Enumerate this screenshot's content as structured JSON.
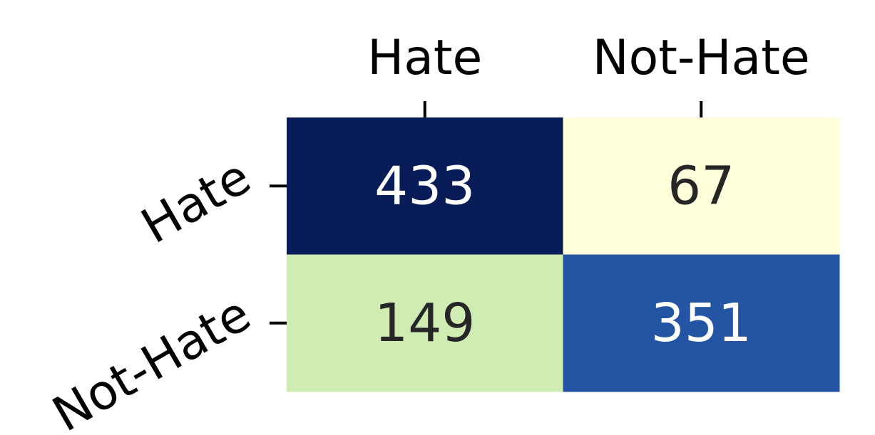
{
  "chart_data": {
    "type": "heatmap",
    "title": "",
    "xlabel": "",
    "ylabel": "",
    "x_categories": [
      "Hate",
      "Not-Hate"
    ],
    "y_categories": [
      "Hate",
      "Not-Hate"
    ],
    "values": [
      [
        433,
        67
      ],
      [
        149,
        351
      ]
    ],
    "x_axis_position": "top",
    "y_tick_rotation_deg": 30,
    "colorbar": false,
    "colormap": "YlGnBu",
    "text_colors": {
      "dark_background": "#ffffff",
      "light_background": "#262626"
    }
  }
}
